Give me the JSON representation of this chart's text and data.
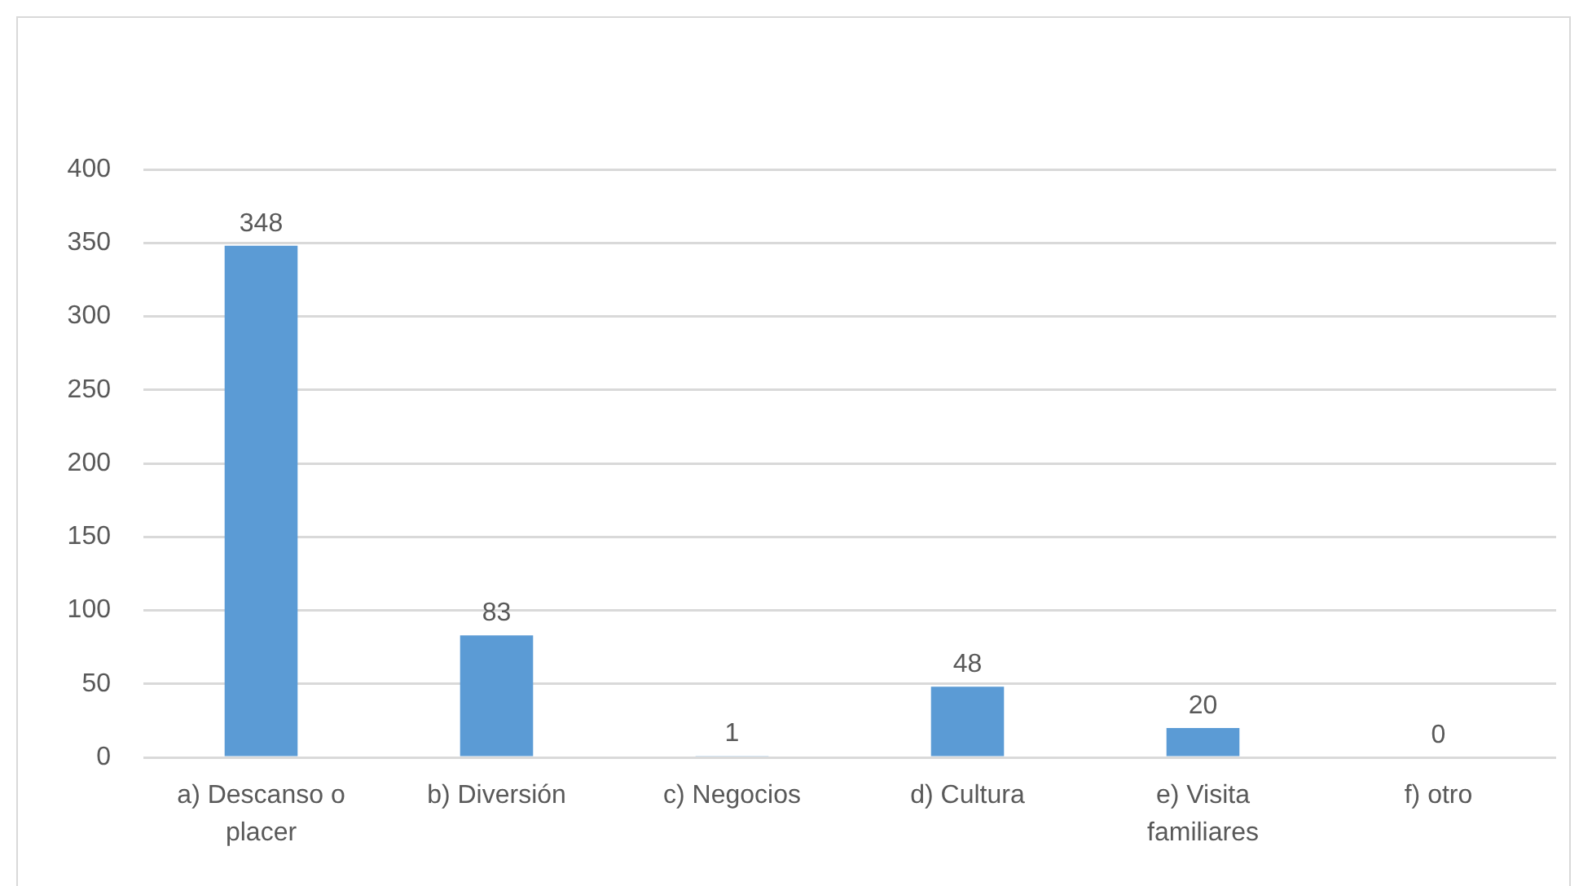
{
  "chart_data": {
    "type": "bar",
    "categories": [
      "a) Descanso o placer",
      "b) Diversión",
      "c) Negocios",
      "d) Cultura",
      "e) Visita familiares",
      "f) otro"
    ],
    "values": [
      348,
      83,
      1,
      48,
      20,
      0
    ],
    "color": "#5b9bd5",
    "ylim": [
      0,
      400
    ],
    "yticks": [
      0,
      50,
      100,
      150,
      200,
      250,
      300,
      350,
      400
    ],
    "grid": "y",
    "data_labels": true
  }
}
